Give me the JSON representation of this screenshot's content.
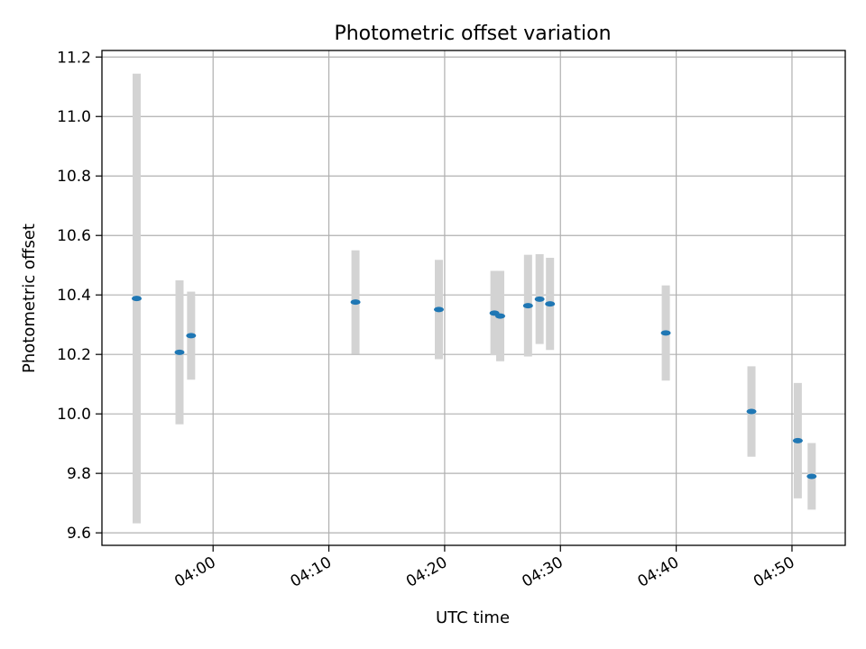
{
  "chart_data": {
    "type": "scatter",
    "title": "Photometric offset variation",
    "xlabel": "UTC time",
    "ylabel": "Photometric offset",
    "x_unit": "UTC clock time (HH:MM)",
    "xlim": [
      "03:50:24",
      "04:54:36"
    ],
    "ylim": [
      9.558,
      11.222
    ],
    "xticks": [
      "04:00",
      "04:10",
      "04:20",
      "04:30",
      "04:40",
      "04:50"
    ],
    "yticks": [
      9.6,
      9.8,
      10.0,
      10.2,
      10.4,
      10.6,
      10.8,
      11.0,
      11.2
    ],
    "grid": true,
    "legend": "none",
    "point_color": "#1f77b4",
    "errorbar_color": "#d3d3d3",
    "series": [
      {
        "points": [
          {
            "x": "03:53:24",
            "y": 10.388,
            "err": 0.756
          },
          {
            "x": "03:57:06",
            "y": 10.207,
            "err": 0.242
          },
          {
            "x": "03:58:06",
            "y": 10.263,
            "err": 0.148
          },
          {
            "x": "04:12:18",
            "y": 10.376,
            "err": 0.174
          },
          {
            "x": "04:19:30",
            "y": 10.351,
            "err": 0.167
          },
          {
            "x": "04:24:18",
            "y": 10.339,
            "err": 0.142
          },
          {
            "x": "04:24:48",
            "y": 10.329,
            "err": 0.152
          },
          {
            "x": "04:27:12",
            "y": 10.364,
            "err": 0.171
          },
          {
            "x": "04:28:12",
            "y": 10.386,
            "err": 0.151
          },
          {
            "x": "04:29:06",
            "y": 10.37,
            "err": 0.155
          },
          {
            "x": "04:39:06",
            "y": 10.272,
            "err": 0.16
          },
          {
            "x": "04:46:30",
            "y": 10.008,
            "err": 0.152
          },
          {
            "x": "04:50:30",
            "y": 9.91,
            "err": 0.194
          },
          {
            "x": "04:51:42",
            "y": 9.79,
            "err": 0.112
          }
        ]
      }
    ]
  }
}
